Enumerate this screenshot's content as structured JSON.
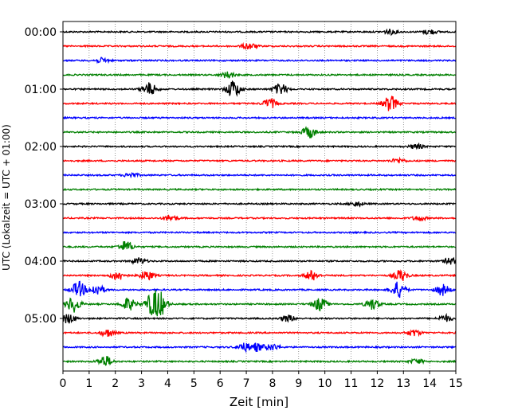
{
  "chart_data": {
    "type": "line",
    "title": "",
    "xlabel": "Zeit  [min]",
    "ylabel": "UTC (Lokalzeit = UTC + 01:00)",
    "xlim": [
      0,
      15
    ],
    "x_ticks": [
      "0",
      "1",
      "2",
      "3",
      "4",
      "5",
      "6",
      "7",
      "8",
      "9",
      "10",
      "11",
      "12",
      "13",
      "14",
      "15"
    ],
    "y_tick_labels": [
      "00:00",
      "01:00",
      "02:00",
      "03:00",
      "04:00",
      "05:00"
    ],
    "trace_interval_min": 15,
    "grid": "vertical dotted",
    "color_cycle": [
      "#000000",
      "#ff0000",
      "#0000ff",
      "#008000"
    ],
    "traces": [
      {
        "start": "00:00",
        "bursts": [
          {
            "t": 12.5,
            "amp": 3
          },
          {
            "t": 14.0,
            "amp": 3
          }
        ]
      },
      {
        "start": "00:15",
        "bursts": [
          {
            "t": 7.1,
            "amp": 4
          }
        ]
      },
      {
        "start": "00:30",
        "bursts": [
          {
            "t": 1.5,
            "amp": 3
          }
        ]
      },
      {
        "start": "00:45",
        "bursts": [
          {
            "t": 6.3,
            "amp": 4
          }
        ]
      },
      {
        "start": "01:00",
        "bursts": [
          {
            "t": 3.3,
            "amp": 8
          },
          {
            "t": 6.5,
            "amp": 11
          },
          {
            "t": 8.3,
            "amp": 7
          }
        ]
      },
      {
        "start": "01:15",
        "bursts": [
          {
            "t": 7.9,
            "amp": 6
          },
          {
            "t": 12.5,
            "amp": 10
          }
        ]
      },
      {
        "start": "01:30",
        "bursts": []
      },
      {
        "start": "01:45",
        "bursts": [
          {
            "t": 9.4,
            "amp": 7
          }
        ]
      },
      {
        "start": "02:00",
        "bursts": [
          {
            "t": 13.5,
            "amp": 3
          }
        ]
      },
      {
        "start": "02:15",
        "bursts": [
          {
            "t": 12.8,
            "amp": 3
          }
        ]
      },
      {
        "start": "02:30",
        "bursts": [
          {
            "t": 2.6,
            "amp": 3
          }
        ]
      },
      {
        "start": "02:45",
        "bursts": []
      },
      {
        "start": "03:00",
        "bursts": [
          {
            "t": 11.2,
            "amp": 3
          }
        ]
      },
      {
        "start": "03:15",
        "bursts": [
          {
            "t": 4.1,
            "amp": 4
          },
          {
            "t": 13.6,
            "amp": 3
          }
        ]
      },
      {
        "start": "03:30",
        "bursts": []
      },
      {
        "start": "03:45",
        "bursts": [
          {
            "t": 2.4,
            "amp": 7
          }
        ]
      },
      {
        "start": "04:00",
        "bursts": [
          {
            "t": 2.9,
            "amp": 4
          },
          {
            "t": 14.8,
            "amp": 4
          }
        ]
      },
      {
        "start": "04:15",
        "bursts": [
          {
            "t": 2.1,
            "amp": 6
          },
          {
            "t": 3.2,
            "amp": 6
          },
          {
            "t": 9.5,
            "amp": 6
          },
          {
            "t": 12.9,
            "amp": 7
          }
        ]
      },
      {
        "start": "04:30",
        "bursts": [
          {
            "t": 0.6,
            "amp": 10
          },
          {
            "t": 1.3,
            "amp": 7
          },
          {
            "t": 12.8,
            "amp": 10
          },
          {
            "t": 14.5,
            "amp": 7
          }
        ]
      },
      {
        "start": "04:45",
        "bursts": [
          {
            "t": 0.4,
            "amp": 10
          },
          {
            "t": 2.5,
            "amp": 8
          },
          {
            "t": 3.4,
            "amp": 12
          },
          {
            "t": 3.7,
            "amp": 14
          },
          {
            "t": 9.8,
            "amp": 8
          },
          {
            "t": 11.8,
            "amp": 7
          }
        ]
      },
      {
        "start": "05:00",
        "bursts": [
          {
            "t": 0.2,
            "amp": 6
          },
          {
            "t": 8.6,
            "amp": 4
          },
          {
            "t": 14.6,
            "amp": 4
          }
        ]
      },
      {
        "start": "05:15",
        "bursts": [
          {
            "t": 1.7,
            "amp": 5
          },
          {
            "t": 13.4,
            "amp": 4
          }
        ]
      },
      {
        "start": "05:30",
        "bursts": [
          {
            "t": 6.9,
            "amp": 5
          },
          {
            "t": 7.4,
            "amp": 5
          },
          {
            "t": 8.0,
            "amp": 4
          }
        ]
      },
      {
        "start": "05:45",
        "bursts": [
          {
            "t": 1.6,
            "amp": 7
          },
          {
            "t": 13.5,
            "amp": 3
          }
        ]
      }
    ]
  }
}
